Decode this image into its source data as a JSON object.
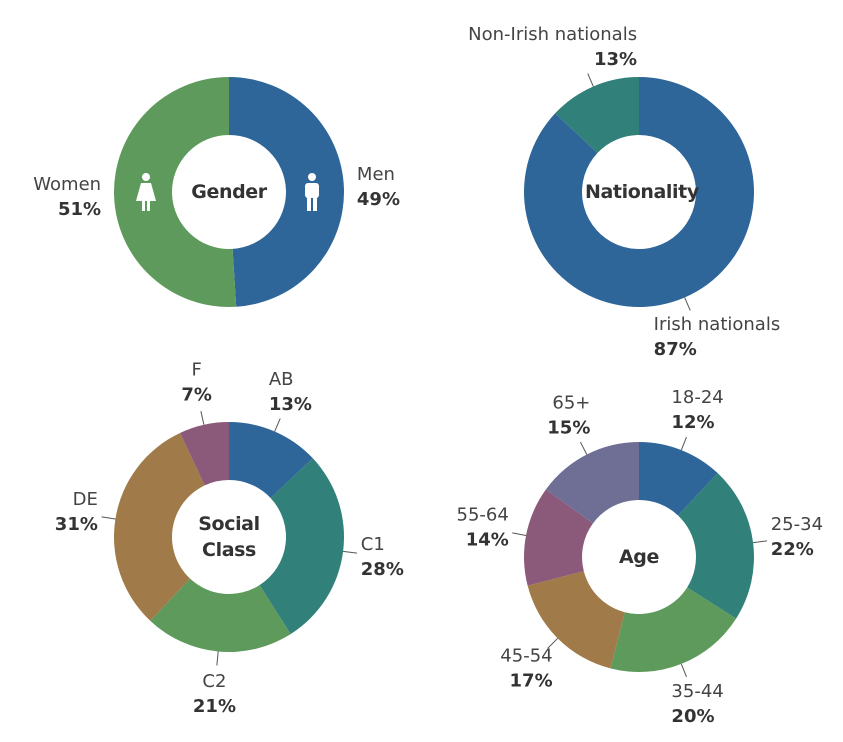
{
  "chart_data": [
    {
      "type": "pie",
      "title": "Gender",
      "categories": [
        "Men",
        "Women"
      ],
      "values": [
        49,
        51
      ],
      "value_labels": [
        "49%",
        "51%"
      ],
      "colors": [
        "#2e6699",
        "#5e9a5c"
      ],
      "leader_lines": false
    },
    {
      "type": "pie",
      "title": "Nationality",
      "categories": [
        "Irish nationals",
        "Non-Irish nationals"
      ],
      "values": [
        87,
        13
      ],
      "value_labels": [
        "87%",
        "13%"
      ],
      "colors": [
        "#2e6699",
        "#31807a"
      ],
      "leader_lines": true
    },
    {
      "type": "pie",
      "title": "Social Class",
      "categories": [
        "AB",
        "C1",
        "C2",
        "DE",
        "F"
      ],
      "values": [
        13,
        28,
        21,
        31,
        7
      ],
      "value_labels": [
        "13%",
        "28%",
        "21%",
        "31%",
        "7%"
      ],
      "colors": [
        "#2e6699",
        "#31807a",
        "#5e9a5c",
        "#a07a48",
        "#8b5a7a"
      ],
      "leader_lines": true
    },
    {
      "type": "pie",
      "title": "Age",
      "categories": [
        "18-24",
        "25-34",
        "35-44",
        "45-54",
        "55-64",
        "65+"
      ],
      "values": [
        12,
        22,
        20,
        17,
        14,
        15
      ],
      "value_labels": [
        "12%",
        "22%",
        "20%",
        "17%",
        "14%",
        "15%"
      ],
      "colors": [
        "#2e6699",
        "#31807a",
        "#5e9a5c",
        "#a07a48",
        "#8b5a7a",
        "#6f6f96"
      ],
      "leader_lines": true
    }
  ]
}
